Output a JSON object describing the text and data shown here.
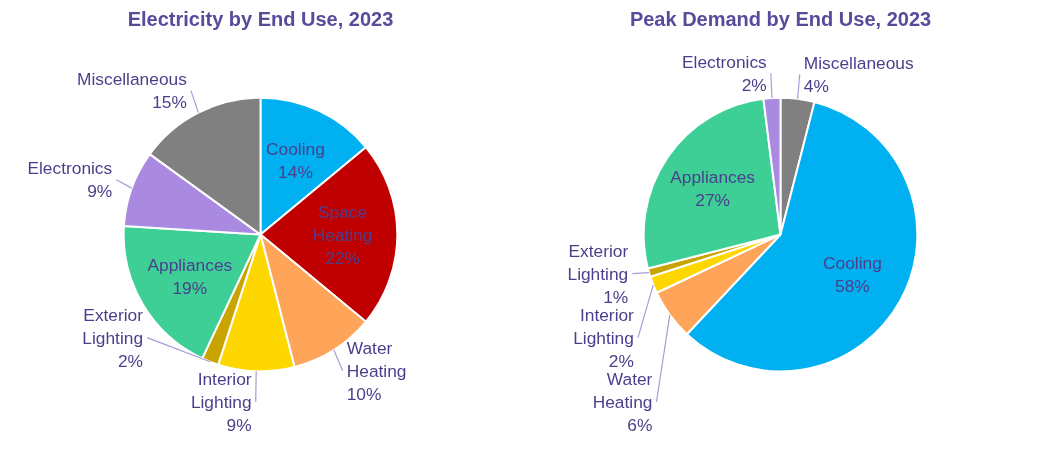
{
  "chart_data": [
    {
      "type": "pie",
      "title": "Electricity by End Use, 2023",
      "categories": [
        "Cooling",
        "Space Heating",
        "Water Heating",
        "Interior Lighting",
        "Exterior Lighting",
        "Appliances",
        "Electronics",
        "Miscellaneous"
      ],
      "values": [
        14,
        22,
        10,
        9,
        2,
        19,
        9,
        15
      ],
      "value_labels": [
        "14%",
        "22%",
        "10%",
        "9%",
        "2%",
        "19%",
        "9%",
        "15%"
      ],
      "colors": [
        "#00b0f0",
        "#c00000",
        "#ffa55a",
        "#ffd700",
        "#c9a400",
        "#3ecf97",
        "#a98ae0",
        "#808080"
      ]
    },
    {
      "type": "pie",
      "title": "Peak Demand by End Use, 2023",
      "categories": [
        "Miscellaneous",
        "Cooling",
        "Water Heating",
        "Interior Lighting",
        "Exterior Lighting",
        "Appliances",
        "Electronics"
      ],
      "values": [
        4,
        58,
        6,
        2,
        1,
        27,
        2
      ],
      "value_labels": [
        "4%",
        "58%",
        "6%",
        "2%",
        "1%",
        "27%",
        "2%"
      ],
      "colors": [
        "#808080",
        "#00b0f0",
        "#ffa55a",
        "#ffd700",
        "#c9a400",
        "#3ecf97",
        "#a98ae0"
      ]
    }
  ]
}
